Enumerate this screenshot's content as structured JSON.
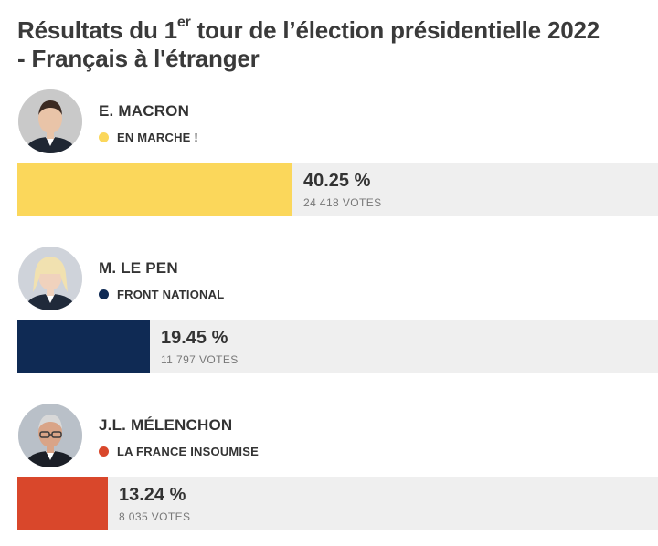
{
  "title": {
    "line1_pre": "Résultats du 1",
    "line1_sup": "er",
    "line1_post": " tour de l’élection présidentielle 2022",
    "line2": "- Français à l'étranger"
  },
  "chart_data": {
    "type": "bar",
    "orientation": "horizontal",
    "unit": "%",
    "categories": [
      "E. MACRON",
      "M. LE PEN",
      "J.L. MÉLENCHON"
    ],
    "values": [
      40.25,
      19.45,
      13.24
    ],
    "candidates": [
      {
        "name": "E. MACRON",
        "party": "EN MARCHE !",
        "party_color": "#fbd75b",
        "percent": 40.25,
        "percent_label": "40.25 %",
        "votes_label": "24 418 VOTES",
        "avatar_icon": "macron-portrait-icon"
      },
      {
        "name": "M. LE PEN",
        "party": "FRONT NATIONAL",
        "party_color": "#0f2a54",
        "percent": 19.45,
        "percent_label": "19.45 %",
        "votes_label": "11 797 VOTES",
        "avatar_icon": "le-pen-portrait-icon"
      },
      {
        "name": "J.L. MÉLENCHON",
        "party": "LA FRANCE INSOUMISE",
        "party_color": "#d9472b",
        "percent": 13.24,
        "percent_label": "13.24 %",
        "votes_label": "8 035 VOTES",
        "avatar_icon": "melenchon-portrait-icon"
      }
    ]
  }
}
